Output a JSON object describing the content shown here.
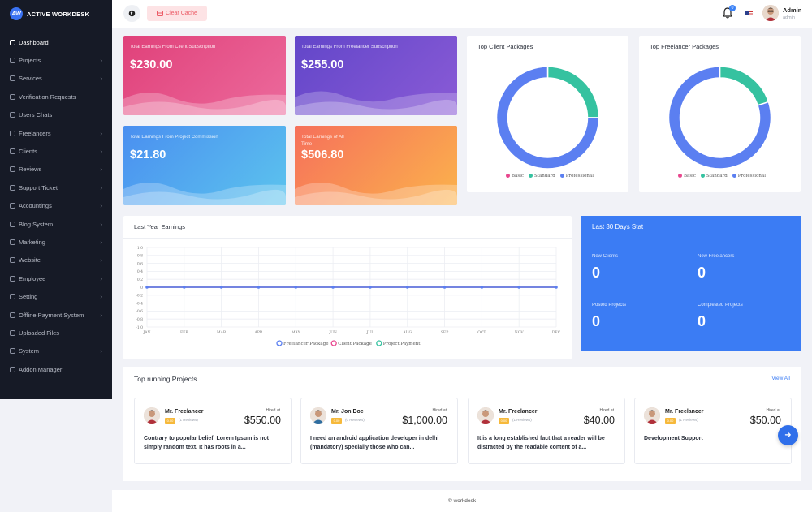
{
  "brand": {
    "logo_mark": "AW",
    "name": "ACTIVE WORKDESK"
  },
  "sidebar": {
    "items": [
      {
        "label": "Dashboard",
        "icon": "home-icon",
        "chevron": false
      },
      {
        "label": "Projects",
        "icon": "list-icon",
        "chevron": true
      },
      {
        "label": "Services",
        "icon": "sliders-icon",
        "chevron": true
      },
      {
        "label": "Verification Requests",
        "icon": "user-check-icon",
        "chevron": false
      },
      {
        "label": "Users Chats",
        "icon": "chat-icon",
        "chevron": false
      },
      {
        "label": "Freelancers",
        "icon": "users-icon",
        "chevron": true
      },
      {
        "label": "Clients",
        "icon": "user-icon",
        "chevron": true
      },
      {
        "label": "Reviews",
        "icon": "star-icon",
        "chevron": true
      },
      {
        "label": "Support Ticket",
        "icon": "ticket-icon",
        "chevron": true
      },
      {
        "label": "Accountings",
        "icon": "wallet-icon",
        "chevron": true
      },
      {
        "label": "Blog System",
        "icon": "rss-icon",
        "chevron": true
      },
      {
        "label": "Marketing",
        "icon": "megaphone-icon",
        "chevron": true
      },
      {
        "label": "Website",
        "icon": "globe-icon",
        "chevron": true
      },
      {
        "label": "Employee",
        "icon": "id-card-icon",
        "chevron": true
      },
      {
        "label": "Setting",
        "icon": "gear-icon",
        "chevron": true
      },
      {
        "label": "Offline Payment System",
        "icon": "credit-card-icon",
        "chevron": true
      },
      {
        "label": "Uploaded Files",
        "icon": "folder-icon",
        "chevron": false
      },
      {
        "label": "System",
        "icon": "server-icon",
        "chevron": true
      },
      {
        "label": "Addon Manager",
        "icon": "puzzle-icon",
        "chevron": false
      }
    ]
  },
  "topbar": {
    "clear_cache": "Clear Cache",
    "notif_count": "0",
    "admin_name": "Admin",
    "admin_role": "admin"
  },
  "earnings": [
    {
      "label": "Total Earnings From Client Subscription",
      "value": "$230.00"
    },
    {
      "label": "Total Earnings From Freelancer Subscription",
      "value": "$255.00"
    },
    {
      "label": "Total Earnings From Project Commission",
      "value": "$21.80"
    },
    {
      "label": "Total Earnings of All Time",
      "value": "$506.80"
    }
  ],
  "client_packages": {
    "title": "Top Client Packages",
    "legend": [
      "Basic",
      "Standard",
      "Professional"
    ]
  },
  "freelancer_packages": {
    "title": "Top Freelancer Packages",
    "legend": [
      "Basic",
      "Standard",
      "Professional"
    ]
  },
  "colors": {
    "basic": "#e8478e",
    "standard": "#35c2a0",
    "professional": "#5b7ff1",
    "accent": "#3b7cf4"
  },
  "chart_data": [
    {
      "type": "pie",
      "title": "Top Client Packages",
      "categories": [
        "Basic",
        "Standard",
        "Professional"
      ],
      "values": [
        0,
        25,
        75
      ]
    },
    {
      "type": "pie",
      "title": "Top Freelancer Packages",
      "categories": [
        "Basic",
        "Standard",
        "Professional"
      ],
      "values": [
        0,
        20,
        80
      ]
    },
    {
      "type": "line",
      "title": "Last Year Earnings",
      "categories": [
        "JAN",
        "FEB",
        "MAR",
        "APR",
        "MAY",
        "JUN",
        "JUL",
        "AUG",
        "SEP",
        "OCT",
        "NOV",
        "DEC"
      ],
      "y_ticks": [
        "1.0",
        "0.8",
        "0.6",
        "0.4",
        "0.2",
        "0",
        "-0.2",
        "-0.4",
        "-0.6",
        "-0.8",
        "-1.0"
      ],
      "ylim": [
        -1,
        1
      ],
      "grid": true,
      "legend_placement": "bottom",
      "series": [
        {
          "name": "Freelancer Package",
          "values": [
            0,
            0,
            0,
            0,
            0,
            0,
            0,
            0,
            0,
            0,
            0,
            0
          ]
        },
        {
          "name": "Client Package",
          "values": [
            0,
            0,
            0,
            0,
            0,
            0,
            0,
            0,
            0,
            0,
            0,
            0
          ]
        },
        {
          "name": "Project Payment",
          "values": [
            0,
            0,
            0,
            0,
            0,
            0,
            0,
            0,
            0,
            0,
            0,
            0
          ]
        }
      ]
    }
  ],
  "stats": {
    "title": "Last 30 Days Stat",
    "items": [
      {
        "label": "New Clients",
        "value": "0"
      },
      {
        "label": "New Freelancers",
        "value": "0"
      },
      {
        "label": "Posted Projects",
        "value": "0"
      },
      {
        "label": "Compleated Projects",
        "value": "0"
      }
    ]
  },
  "projects": {
    "title": "Top running Projects",
    "view_all": "View All",
    "items": [
      {
        "name": "Mr. Freelancer",
        "tag": "0.00",
        "reviews": "(1 Reviews)",
        "hired": "Hired at",
        "price": "$550.00",
        "desc": "Contrary to popular belief, Lorem Ipsum is not simply random text. It has roots in a..."
      },
      {
        "name": "Mr. Jon Doe",
        "tag": "0.00",
        "reviews": "(0 Reviews)",
        "hired": "Hired at",
        "price": "$1,000.00",
        "desc": "I need an android application developer in delhi (mandatory) specially those who can..."
      },
      {
        "name": "Mr. Freelancer",
        "tag": "0.00",
        "reviews": "(1 Reviews)",
        "hired": "Hired at",
        "price": "$40.00",
        "desc": "It is a long established fact that a reader will be distracted by the readable content of a..."
      },
      {
        "name": "Mr. Freelancer",
        "tag": "0.00",
        "reviews": "(1 Reviews)",
        "hired": "Hired at",
        "price": "$50.00",
        "desc": "Development Support"
      }
    ]
  },
  "footer": "© workdesk"
}
